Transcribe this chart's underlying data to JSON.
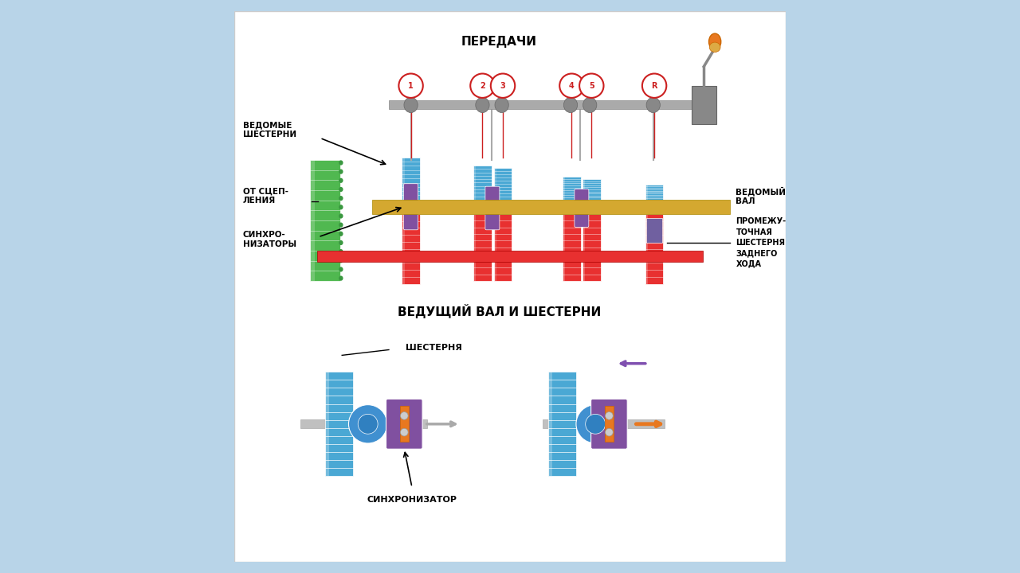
{
  "bg_color": "#b8d4e8",
  "panel_color": "#ffffff",
  "title_top": "ПЕРЕДАЧИ",
  "title_bottom": "ВЕДУЩИЙ ВАЛ И ШЕСТЕРНИ",
  "label_vedomy_shest": "ВЕДОМЫЕ\nШЕСТЕРНИ",
  "label_ot_scep": "ОТ СЦЕП-\nЛЕНИЯ",
  "label_sinhr": "СИНХРО-\nНИЗАТОРЫ",
  "label_vedomy_val": "ВЕДОМЫЙ\nВАЛ",
  "label_promezhut": "ПРОМЕЖУ-\nТОЧНАЯ\nШЕСТЕРНЯ\nЗАДНЕГО\nХОДА",
  "label_shest": "ШЕСТЕРНЯ",
  "label_sinhr2": "СИНХРОНИЗАТОР",
  "gear_numbers": [
    "1",
    "2",
    "3",
    "4",
    "5",
    "R"
  ],
  "color_blue_gear": "#4aa8d4",
  "color_red_gear": "#e83030",
  "color_green_gear": "#50b850",
  "color_purple_sync": "#8050a0",
  "color_gold_shaft": "#d4a830",
  "color_gray_rod": "#909090",
  "color_orange": "#e87820",
  "color_purple_arrow": "#8050b0",
  "color_red_circle": "#cc2020",
  "font_size_title": 11,
  "font_size_label": 8,
  "font_size_gear_num": 7
}
